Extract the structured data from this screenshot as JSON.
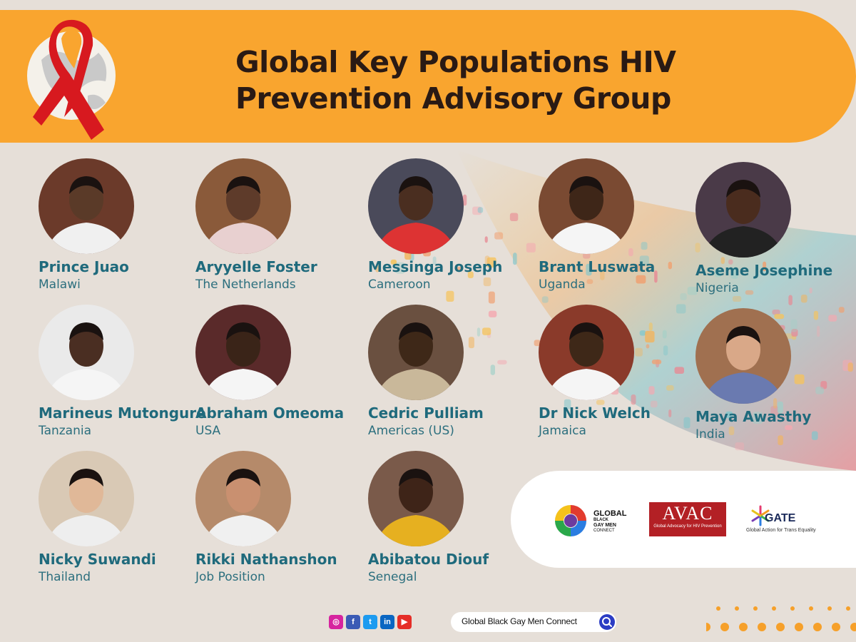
{
  "header": {
    "title_line1": "Global Key Populations HIV",
    "title_line2": "Prevention Advisory Group"
  },
  "members": [
    {
      "name": "Prince Juao",
      "country": "Malawi"
    },
    {
      "name": "Aryyelle Foster",
      "country": "The Netherlands"
    },
    {
      "name": "Messinga Joseph",
      "country": "Cameroon"
    },
    {
      "name": "Brant Luswata",
      "country": "Uganda"
    },
    {
      "name": "Aseme Josephine",
      "country": "Nigeria"
    },
    {
      "name": "Marineus Mutongure",
      "country": "Tanzania"
    },
    {
      "name": "Abraham Omeoma",
      "country": "USA"
    },
    {
      "name": "Cedric Pulliam",
      "country": "Americas (US)"
    },
    {
      "name": "Dr Nick Welch",
      "country": "Jamaica"
    },
    {
      "name": "Maya Awasthy",
      "country": "India"
    },
    {
      "name": "Nicky Suwandi",
      "country": "Thailand"
    },
    {
      "name": "Rikki Nathanshon",
      "country": "Job Position"
    },
    {
      "name": "Abibatou Diouf",
      "country": "Senegal"
    }
  ],
  "sponsors": {
    "gbgmc": {
      "line1": "GLOBAL",
      "line2": "BLACK",
      "line3": "GAY MEN",
      "line4": "CONNECT"
    },
    "avac": {
      "main": "AVAC",
      "sub": "Global Advocacy for HIV Prevention"
    },
    "gate": {
      "main": "GATE",
      "sub": "Global Action for Trans Equality"
    }
  },
  "footer": {
    "social_icons": [
      "instagram-icon",
      "facebook-icon",
      "twitter-icon",
      "linkedin-icon",
      "youtube-icon"
    ],
    "search_text": "Global Black Gay Men Connect"
  },
  "colors": {
    "banner": "#f9a52f",
    "name": "#1f6a7c",
    "ribbon": "#d7191f",
    "avac": "#b32025"
  }
}
